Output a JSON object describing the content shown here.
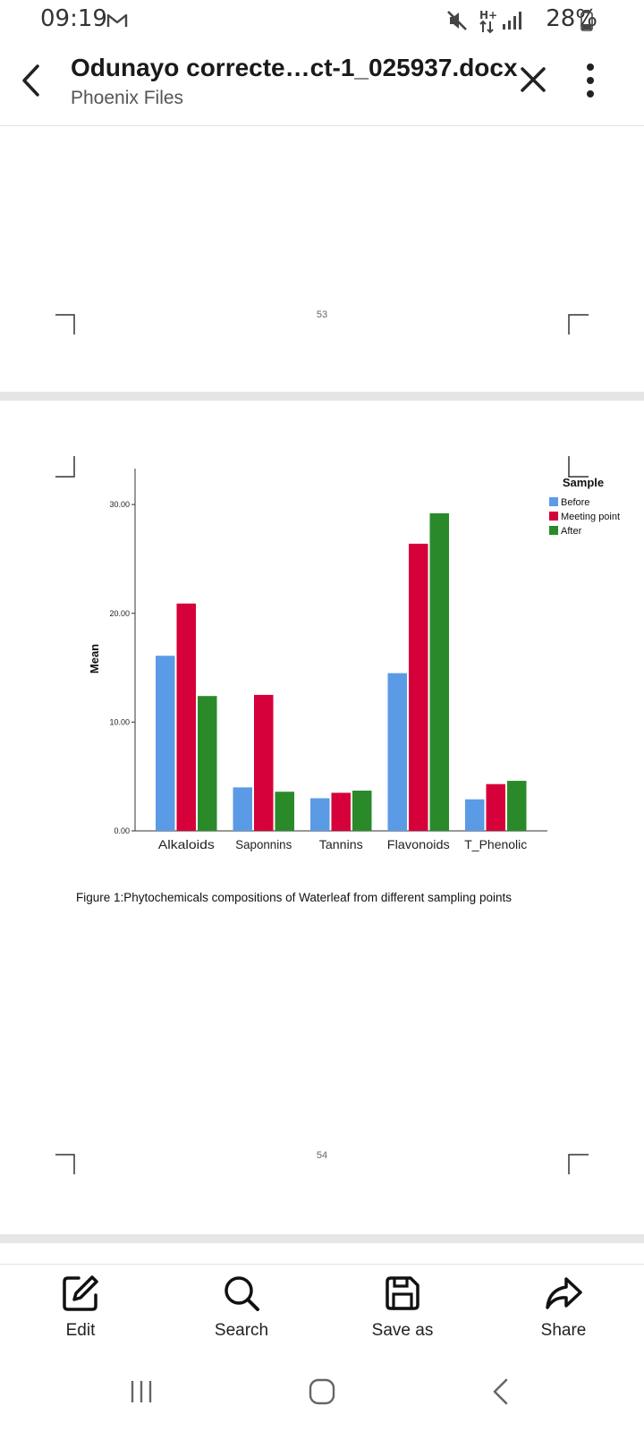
{
  "status_bar": {
    "time": "09:19",
    "battery": "28%"
  },
  "app_bar": {
    "title": "Odunayo correcte…ct-1_025937.docx",
    "subtitle": "Phoenix Files"
  },
  "document": {
    "page_53_number": "53",
    "page_54_number": "54",
    "figure_caption": "Figure 1:Phytochemicals compositions of Waterleaf from different sampling points"
  },
  "chart_data": {
    "type": "bar",
    "title": "",
    "xlabel": "",
    "ylabel": "Mean",
    "ylim": [
      0,
      33.3
    ],
    "yticks": [
      "0.00",
      "10.00",
      "20.00",
      "30.00"
    ],
    "categories": [
      "Alkaloids",
      "Saponnins",
      "Tannins",
      "Flavonoids",
      "T_Phenolic"
    ],
    "legend_title": "Sample",
    "legend_position": "top-right",
    "grid": false,
    "series": [
      {
        "name": "Before",
        "color": "#5B9BE6",
        "values": [
          16.1,
          4.0,
          3.0,
          14.5,
          2.9
        ]
      },
      {
        "name": "Meeting point",
        "color": "#D6003A",
        "values": [
          20.9,
          12.5,
          3.5,
          26.4,
          4.3
        ]
      },
      {
        "name": "After",
        "color": "#2A8A2A",
        "values": [
          12.4,
          3.6,
          3.7,
          29.2,
          4.6
        ]
      }
    ]
  },
  "toolbar": {
    "edit_label": "Edit",
    "search_label": "Search",
    "save_as_label": "Save as",
    "share_label": "Share"
  }
}
